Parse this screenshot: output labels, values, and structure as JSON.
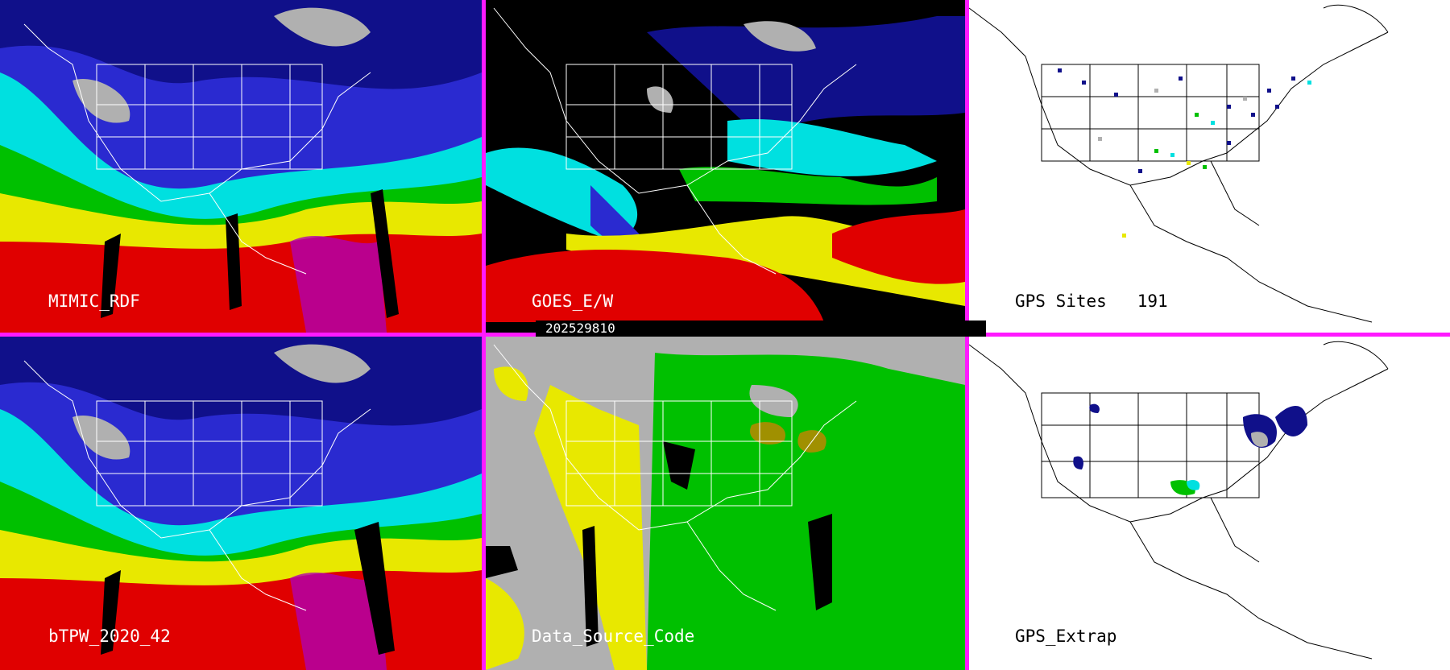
{
  "panels": [
    {
      "id": "p1",
      "label": "MIMIC_RDF",
      "style": "tpw-rainbow"
    },
    {
      "id": "p2",
      "label": "GOES_E/W",
      "style": "goes"
    },
    {
      "id": "p3",
      "label": "GPS Sites   191",
      "style": "gps-sites"
    },
    {
      "id": "p4",
      "label": "bTPW_2020_42",
      "style": "tpw-rainbow"
    },
    {
      "id": "p5",
      "label": "Data_Source_Code",
      "style": "source-code"
    },
    {
      "id": "p6",
      "label": "GPS_Extrap",
      "style": "gps-extrap"
    }
  ],
  "timestamp": "202529810",
  "colors": {
    "separator": "#ff1aff",
    "low": "#10108a",
    "lowmid": "#2a2ad0",
    "mid": "#00e0e0",
    "green": "#00c000",
    "yellow": "#e8e800",
    "red": "#e00000",
    "magenta": "#b000b0",
    "gray": "#b0b0b0",
    "olive": "#a09000"
  }
}
